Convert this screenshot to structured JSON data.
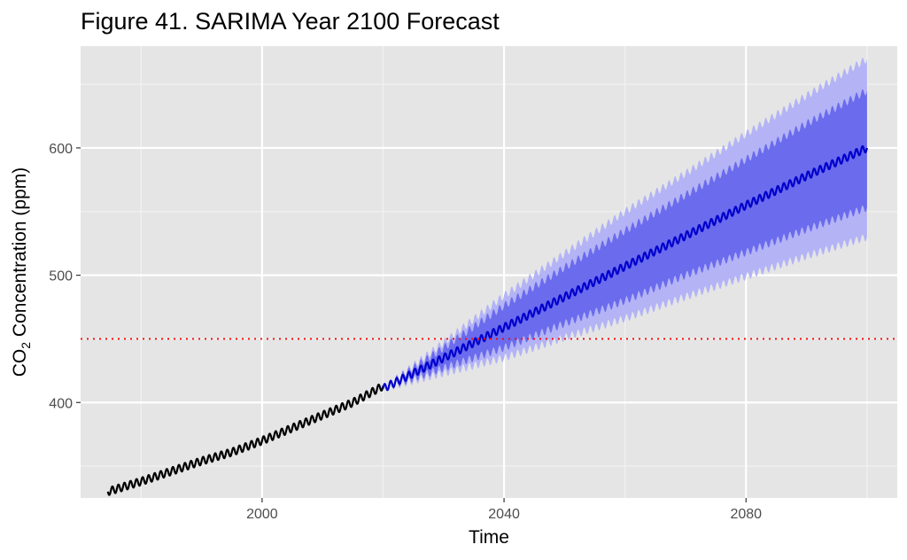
{
  "chart_data": {
    "type": "line",
    "title": "Figure 41. SARIMA Year 2100 Forecast",
    "xlabel": "Time",
    "ylabel_prefix": "CO",
    "ylabel_subscript": "2",
    "ylabel_suffix": " Concentration (ppm)",
    "xlim": [
      1970,
      2105
    ],
    "ylim": [
      325,
      680
    ],
    "x_ticks": [
      2000,
      2040,
      2080
    ],
    "y_ticks": [
      400,
      500,
      600
    ],
    "x_minor": [
      1980,
      2020,
      2060,
      2100
    ],
    "y_minor": [
      350,
      450,
      550,
      650
    ],
    "grid": true,
    "reference_line": {
      "y": 450,
      "style": "dotted",
      "color": "#ff0000"
    },
    "series": [
      {
        "role": "observed",
        "color": "#000000",
        "seasonal_amplitude": 3,
        "x": [
          1974.5,
          1980,
          1985,
          1990,
          1995,
          2000,
          2005,
          2010,
          2015,
          2020
        ],
        "y": [
          330,
          338,
          346,
          354,
          361,
          370,
          380,
          390,
          400,
          413
        ]
      },
      {
        "role": "forecast",
        "color": "#0000cc",
        "seasonal_amplitude": 3,
        "x": [
          2020,
          2030,
          2040,
          2050,
          2060,
          2070,
          2080,
          2090,
          2100
        ],
        "y": [
          411,
          435,
          459,
          483,
          507,
          531,
          555,
          578,
          600
        ],
        "interval_80": {
          "color": "#6b6bee",
          "lower": [
            411,
            427,
            443,
            462,
            480,
            500,
            518,
            536,
            553
          ],
          "upper": [
            411,
            443,
            476,
            506,
            535,
            563,
            591,
            619,
            645
          ]
        },
        "interval_95": {
          "color": "#b3b3f6",
          "lower": [
            411,
            423,
            435,
            451,
            466,
            483,
            499,
            515,
            530
          ],
          "upper": [
            411,
            447,
            484,
            517,
            550,
            580,
            611,
            641,
            670
          ]
        }
      }
    ]
  }
}
